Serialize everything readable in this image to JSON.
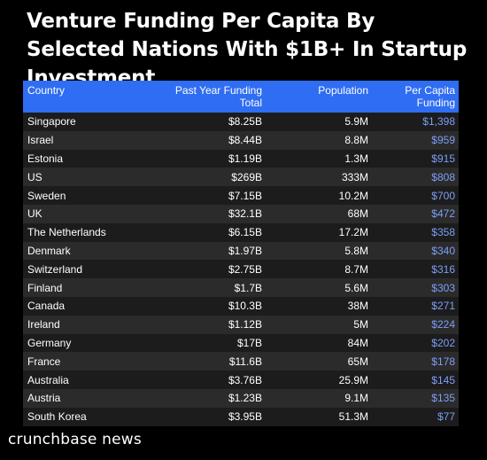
{
  "title": "Venture Funding Per Capita By Selected Nations With $1B+ In Startup Investment",
  "brand": "crunchbase news",
  "colors": {
    "header_bg": "#2f6df2",
    "per_capita_text": "#7d9ef5",
    "background": "#000000"
  },
  "chart_data": {
    "type": "table",
    "title": "Venture Funding Per Capita By Selected Nations With $1B+ In Startup Investment",
    "columns": [
      "Country",
      "Past Year Funding Total",
      "Population",
      "Per Capita Funding"
    ],
    "rows": [
      [
        "Singapore",
        "$8.25B",
        "5.9M",
        "$1,398"
      ],
      [
        "Israel",
        "$8.44B",
        "8.8M",
        "$959"
      ],
      [
        "Estonia",
        "$1.19B",
        "1.3M",
        "$915"
      ],
      [
        "US",
        "$269B",
        "333M",
        "$808"
      ],
      [
        "Sweden",
        "$7.15B",
        "10.2M",
        "$700"
      ],
      [
        "UK",
        "$32.1B",
        "68M",
        "$472"
      ],
      [
        "The Netherlands",
        "$6.15B",
        "17.2M",
        "$358"
      ],
      [
        "Denmark",
        "$1.97B",
        "5.8M",
        "$340"
      ],
      [
        "Switzerland",
        "$2.75B",
        "8.7M",
        "$316"
      ],
      [
        "Finland",
        "$1.7B",
        "5.6M",
        "$303"
      ],
      [
        "Canada",
        "$10.3B",
        "38M",
        "$271"
      ],
      [
        "Ireland",
        "$1.12B",
        "5M",
        "$224"
      ],
      [
        "Germany",
        "$17B",
        "84M",
        "$202"
      ],
      [
        "France",
        "$11.6B",
        "65M",
        "$178"
      ],
      [
        "Australia",
        "$3.76B",
        "25.9M",
        "$145"
      ],
      [
        "Austria",
        "$1.23B",
        "9.1M",
        "$135"
      ],
      [
        "South Korea",
        "$3.95B",
        "51.3M",
        "$77"
      ]
    ]
  }
}
